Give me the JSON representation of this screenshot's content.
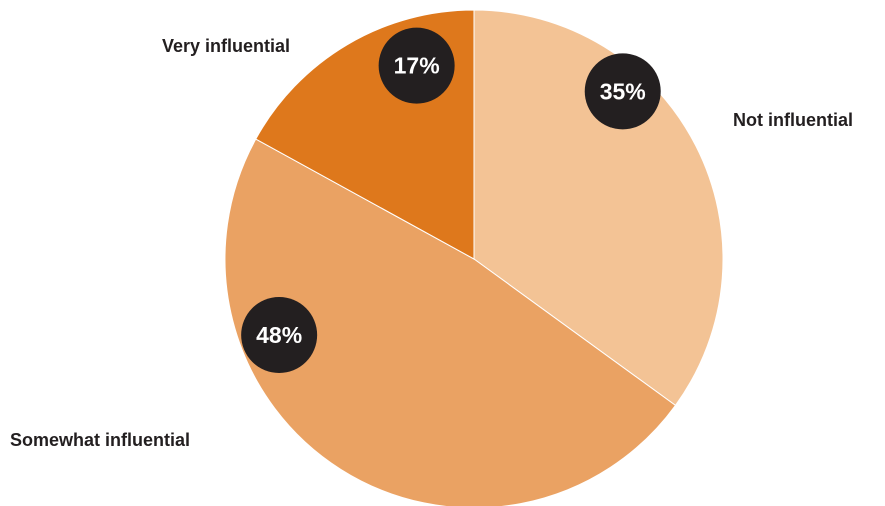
{
  "chart_data": {
    "type": "pie",
    "title": "",
    "slices": [
      {
        "label": "Not influential",
        "value": 35,
        "value_label": "35%",
        "color": "#f3c395"
      },
      {
        "label": "Somewhat influential",
        "value": 48,
        "value_label": "48%",
        "color": "#eaa263"
      },
      {
        "label": "Very influential",
        "value": 17,
        "value_label": "17%",
        "color": "#de781c"
      }
    ],
    "start": "top",
    "direction": "clockwise",
    "badge_color": "#231f20",
    "legend": "none"
  }
}
